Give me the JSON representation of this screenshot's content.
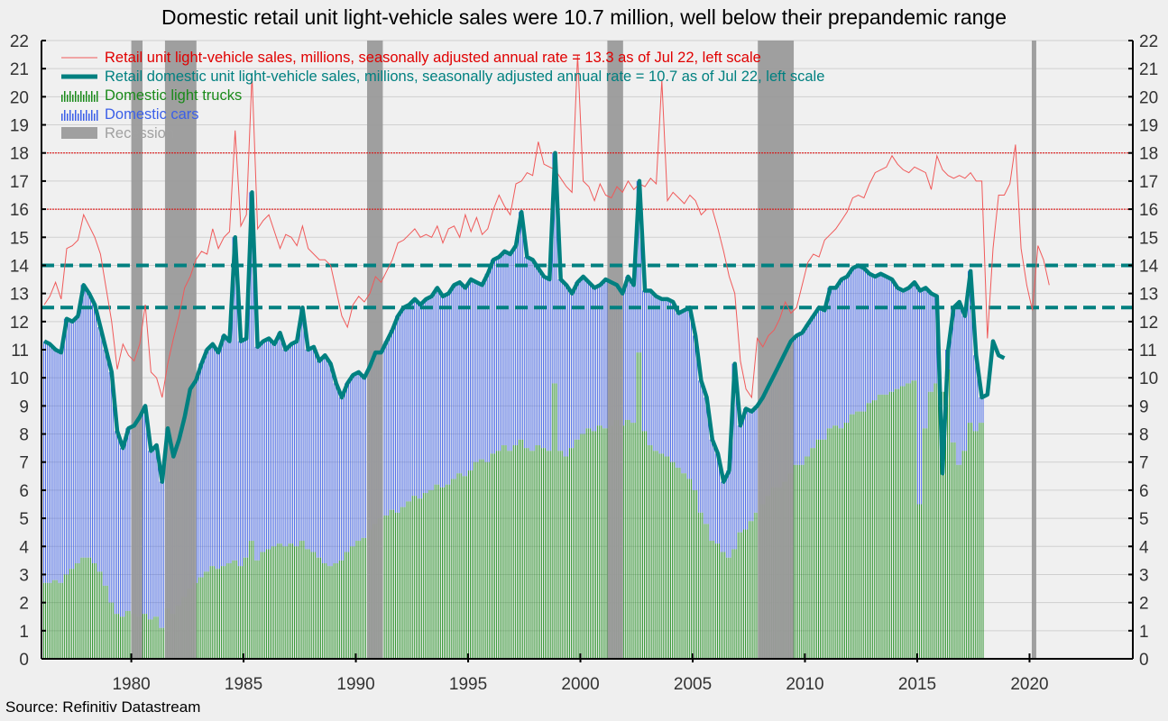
{
  "chart_data": {
    "type": "bar",
    "title": "Domestic retail unit light-vehicle sales were 10.7 million, well below their prepandemic range",
    "source": "Source: Refinitiv Datastream",
    "xlabel": "",
    "ylabel": "",
    "xlim": [
      1976.0,
      2024.6
    ],
    "ylim": [
      0,
      22
    ],
    "yticks": [
      0,
      1,
      2,
      3,
      4,
      5,
      6,
      7,
      8,
      9,
      10,
      11,
      12,
      13,
      14,
      15,
      16,
      17,
      18,
      19,
      20,
      21,
      22
    ],
    "xticks": [
      1980,
      1985,
      1990,
      1995,
      2000,
      2005,
      2010,
      2015,
      2020
    ],
    "grid": true,
    "legend_placement": "top-left",
    "reference_lines": [
      {
        "name": "red-dotted-16",
        "value": 16,
        "color": "#e00000",
        "style": "dotted"
      },
      {
        "name": "red-dotted-18",
        "value": 18,
        "color": "#e00000",
        "style": "dotted"
      },
      {
        "name": "teal-dashed-12.5",
        "value": 12.5,
        "color": "#008080",
        "style": "dashed"
      },
      {
        "name": "teal-dashed-14",
        "value": 14,
        "color": "#008080",
        "style": "dashed"
      }
    ],
    "recessions": [
      [
        1980.0,
        1980.5
      ],
      [
        1981.5,
        1982.9
      ],
      [
        1990.5,
        1991.2
      ],
      [
        2001.2,
        2001.9
      ],
      [
        2007.9,
        2009.5
      ],
      [
        2020.1,
        2020.3
      ]
    ],
    "x_step": 0.25,
    "x_start": 1976.0,
    "series": [
      {
        "name": "Retail unit light-vehicle sales, millions, seasonally adjusted annual rate = 13.3 as of Jul 22, left scale",
        "legend_label": "Retail unit light-vehicle sales, millions, seasonally adjusted annual rate = 13.3 as of Jul 22, left scale",
        "kind": "line-thin",
        "color": "#f05a5a",
        "values": [
          12.6,
          12.9,
          13.4,
          12.8,
          14.6,
          14.7,
          14.9,
          15.8,
          15.4,
          15.0,
          14.4,
          13.2,
          12.0,
          10.3,
          11.2,
          10.8,
          10.6,
          11.2,
          12.6,
          10.2,
          10.0,
          9.3,
          10.5,
          11.4,
          12.2,
          13.2,
          13.6,
          14.2,
          14.5,
          14.4,
          15.3,
          14.6,
          15.0,
          15.2,
          18.8,
          15.4,
          15.8,
          20.8,
          15.3,
          15.6,
          15.8,
          15.2,
          14.6,
          15.1,
          15.0,
          14.7,
          15.4,
          14.6,
          14.4,
          14.2,
          14.2,
          14.0,
          13.1,
          12.2,
          11.8,
          12.6,
          12.9,
          12.7,
          13.0,
          13.6,
          13.4,
          13.8,
          14.2,
          14.8,
          14.9,
          15.1,
          15.3,
          15.0,
          15.1,
          15.0,
          15.4,
          14.8,
          15.3,
          15.4,
          15.0,
          15.8,
          15.2,
          15.7,
          15.1,
          15.3,
          16.0,
          16.5,
          16.1,
          15.8,
          16.9,
          17.0,
          17.3,
          17.2,
          18.4,
          17.6,
          17.5,
          17.4,
          17.1,
          16.8,
          16.6,
          21.5,
          17.0,
          16.8,
          16.3,
          16.9,
          16.5,
          16.4,
          16.8,
          16.6,
          17.0,
          16.7,
          16.9,
          16.8,
          17.1,
          16.9,
          20.6,
          16.3,
          16.6,
          16.4,
          16.2,
          16.5,
          16.3,
          15.8,
          16.0,
          16.0,
          15.3,
          14.5,
          13.6,
          13.0,
          10.6,
          9.6,
          9.3,
          11.4,
          11.1,
          11.5,
          11.7,
          12.1,
          12.7,
          12.3,
          12.5,
          13.3,
          14.1,
          14.4,
          14.3,
          14.9,
          15.1,
          15.3,
          15.6,
          15.9,
          16.4,
          16.5,
          16.4,
          16.9,
          17.3,
          17.4,
          17.5,
          17.9,
          17.6,
          17.4,
          17.3,
          17.5,
          17.4,
          17.3,
          16.7,
          17.9,
          17.4,
          17.2,
          17.1,
          17.2,
          17.1,
          17.3,
          17.0,
          17.0,
          11.4,
          14.6,
          16.5,
          16.5,
          16.9,
          18.3,
          14.6,
          13.3,
          12.4,
          14.7,
          14.2,
          13.3
        ]
      },
      {
        "name": "Retail domestic unit light-vehicle sales, millions, seasonally adjusted annual rate = 10.7 as of Jul 22, left scale",
        "legend_label": "Retail domestic unit light-vehicle sales, millions, seasonally adjusted annual rate = 10.7 as of Jul 22, left scale",
        "kind": "line-thick",
        "color": "#008080",
        "values": [
          11.3,
          11.2,
          11.0,
          10.9,
          12.1,
          12.0,
          12.2,
          13.3,
          13.0,
          12.6,
          11.8,
          11.0,
          10.2,
          8.1,
          7.5,
          8.2,
          8.3,
          8.6,
          9.0,
          7.4,
          7.6,
          6.3,
          8.2,
          7.2,
          7.8,
          8.6,
          9.6,
          9.9,
          10.5,
          11.0,
          11.2,
          10.9,
          11.5,
          11.3,
          15.0,
          11.3,
          11.4,
          16.6,
          11.1,
          11.3,
          11.4,
          11.2,
          11.6,
          11.0,
          11.2,
          11.3,
          12.5,
          11.0,
          11.1,
          10.6,
          10.8,
          10.5,
          9.8,
          9.3,
          9.8,
          10.1,
          10.2,
          10.0,
          10.4,
          10.9,
          10.9,
          11.3,
          11.7,
          12.2,
          12.5,
          12.6,
          12.8,
          12.6,
          12.8,
          12.9,
          13.2,
          12.9,
          13.0,
          13.3,
          13.4,
          13.2,
          13.5,
          13.4,
          13.3,
          13.7,
          14.2,
          14.3,
          14.5,
          14.4,
          14.7,
          15.9,
          14.3,
          14.2,
          13.9,
          13.6,
          13.5,
          18.0,
          13.5,
          13.3,
          13.0,
          13.4,
          13.6,
          13.4,
          13.2,
          13.3,
          13.5,
          13.4,
          13.3,
          13.0,
          13.6,
          13.3,
          17.0,
          13.1,
          13.1,
          12.9,
          12.8,
          12.8,
          12.7,
          12.3,
          12.4,
          12.5,
          11.5,
          9.9,
          9.3,
          7.8,
          7.3,
          6.3,
          6.7,
          10.5,
          8.3,
          8.9,
          8.8,
          9.0,
          9.3,
          9.7,
          10.1,
          10.5,
          10.9,
          11.3,
          11.5,
          11.6,
          11.9,
          12.2,
          12.5,
          12.4,
          13.2,
          13.2,
          13.5,
          13.6,
          13.9,
          14.0,
          13.9,
          13.7,
          13.6,
          13.7,
          13.6,
          13.5,
          13.2,
          13.1,
          13.2,
          13.4,
          13.1,
          13.2,
          13.0,
          12.9,
          6.6,
          11.0,
          12.5,
          12.7,
          12.2,
          13.8,
          10.8,
          9.3,
          9.4,
          11.3,
          10.8,
          10.7
        ]
      },
      {
        "name": "Domestic light trucks",
        "legend_label": "Domestic light trucks",
        "kind": "bar",
        "color": "#1a8a1a",
        "values": [
          2.7,
          2.7,
          2.8,
          2.7,
          3.0,
          3.2,
          3.4,
          3.6,
          3.6,
          3.4,
          3.1,
          2.6,
          2.0,
          1.6,
          1.5,
          1.7,
          1.6,
          1.5,
          1.6,
          1.4,
          1.5,
          1.1,
          1.8,
          1.6,
          1.9,
          2.2,
          2.5,
          2.7,
          2.9,
          3.1,
          3.3,
          3.2,
          3.3,
          3.4,
          3.5,
          3.3,
          3.6,
          4.2,
          3.5,
          3.8,
          3.9,
          4.0,
          4.1,
          4.0,
          4.1,
          4.0,
          4.2,
          3.9,
          3.8,
          3.6,
          3.4,
          3.3,
          3.4,
          3.5,
          3.8,
          4.0,
          4.2,
          4.3,
          4.6,
          4.8,
          5.0,
          5.1,
          5.3,
          5.2,
          5.4,
          5.6,
          5.8,
          5.7,
          5.9,
          6.0,
          6.2,
          6.1,
          6.2,
          6.4,
          6.6,
          6.5,
          6.7,
          7.0,
          7.1,
          7.0,
          7.3,
          7.4,
          7.6,
          7.4,
          7.6,
          7.8,
          7.5,
          7.4,
          7.6,
          7.5,
          7.4,
          9.8,
          7.4,
          7.2,
          7.5,
          7.8,
          8.0,
          8.2,
          8.1,
          8.3,
          8.2,
          8.3,
          8.5,
          8.3,
          8.5,
          8.4,
          10.9,
          8.1,
          7.6,
          7.4,
          7.3,
          7.2,
          7.0,
          6.8,
          6.6,
          6.4,
          6.0,
          5.2,
          4.8,
          4.2,
          4.1,
          3.8,
          3.6,
          3.9,
          4.5,
          4.6,
          4.9,
          5.2,
          5.5,
          5.8,
          6.1,
          6.1,
          6.3,
          6.6,
          6.9,
          6.9,
          7.2,
          7.5,
          7.8,
          7.8,
          8.2,
          8.3,
          8.2,
          8.4,
          8.7,
          8.8,
          8.8,
          9.1,
          9.2,
          9.4,
          9.4,
          9.5,
          9.6,
          9.7,
          9.8,
          9.9,
          5.5,
          8.2,
          9.5,
          9.8,
          9.5,
          10.3,
          7.7,
          6.9,
          7.4,
          8.4,
          8.1,
          8.4
        ]
      },
      {
        "name": "Domestic cars",
        "legend_label": "Domestic cars",
        "kind": "bar-stacked",
        "color": "#3b5fe8",
        "derived": "domestic total minus domestic light trucks"
      },
      {
        "name": "Recession",
        "legend_label": "Recession",
        "kind": "band",
        "color": "#9a9a9a"
      }
    ]
  }
}
